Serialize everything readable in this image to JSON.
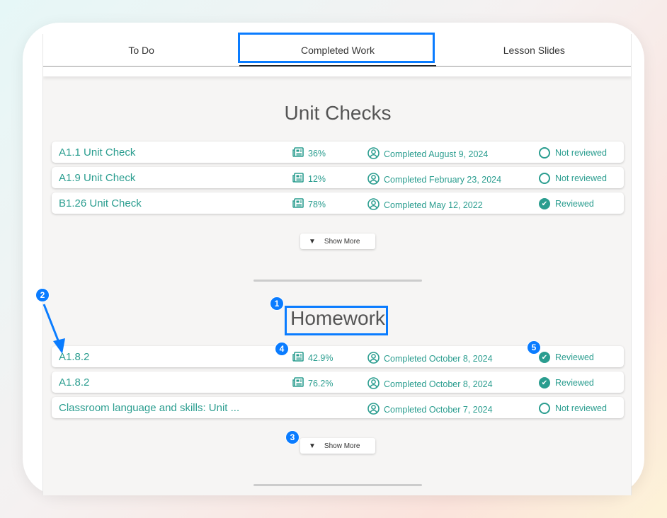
{
  "tabs": [
    {
      "label": "To Do"
    },
    {
      "label": "Completed Work",
      "active": true
    },
    {
      "label": "Lesson Slides"
    }
  ],
  "unit_checks": {
    "title": "Unit Checks",
    "show_more": "Show More",
    "rows": [
      {
        "title": "A1.1 Unit Check",
        "score": "36%",
        "date": "Completed August 9, 2024",
        "status": "Not reviewed",
        "reviewed": false
      },
      {
        "title": "A1.9 Unit Check",
        "score": "12%",
        "date": "Completed February 23, 2024",
        "status": "Not reviewed",
        "reviewed": false
      },
      {
        "title": "B1.26 Unit Check",
        "score": "78%",
        "date": "Completed May 12, 2022",
        "status": "Reviewed",
        "reviewed": true
      }
    ]
  },
  "homework": {
    "title": "Homework",
    "show_more": "Show More",
    "rows": [
      {
        "title": "A1.8.2",
        "score": "42.9%",
        "date": "Completed October 8, 2024",
        "status": "Reviewed",
        "reviewed": true
      },
      {
        "title": "A1.8.2",
        "score": "76.2%",
        "date": "Completed October 8, 2024",
        "status": "Reviewed",
        "reviewed": true
      },
      {
        "title": "Classroom language and skills: Unit ...",
        "score": "",
        "date": "Completed October 7, 2024",
        "status": "Not reviewed",
        "reviewed": false
      }
    ]
  },
  "annotations": [
    "1",
    "2",
    "3",
    "4",
    "5"
  ],
  "colors": {
    "accent": "#2a9d8f",
    "annotation": "#0a7cff"
  },
  "icons": {
    "score": "newspaper-icon",
    "date": "user-circle-icon",
    "reviewed": "check-circle-icon",
    "not_reviewed": "empty-circle-icon",
    "show_more": "caret-down-icon"
  }
}
